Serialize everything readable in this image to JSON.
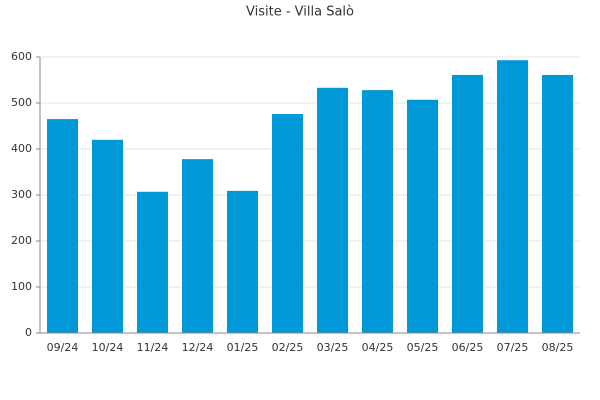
{
  "chart_data": {
    "type": "bar",
    "title": "Visite - Villa Salò",
    "categories": [
      "09/24",
      "10/24",
      "11/24",
      "12/24",
      "01/25",
      "02/25",
      "03/25",
      "04/25",
      "05/25",
      "06/25",
      "07/25",
      "08/25"
    ],
    "values": [
      465,
      420,
      307,
      378,
      309,
      476,
      533,
      528,
      507,
      561,
      593,
      561
    ],
    "color": "#0098d6",
    "ylim": [
      0,
      600
    ],
    "yticks": [
      0,
      100,
      200,
      300,
      400,
      500,
      600
    ],
    "grid": true
  }
}
